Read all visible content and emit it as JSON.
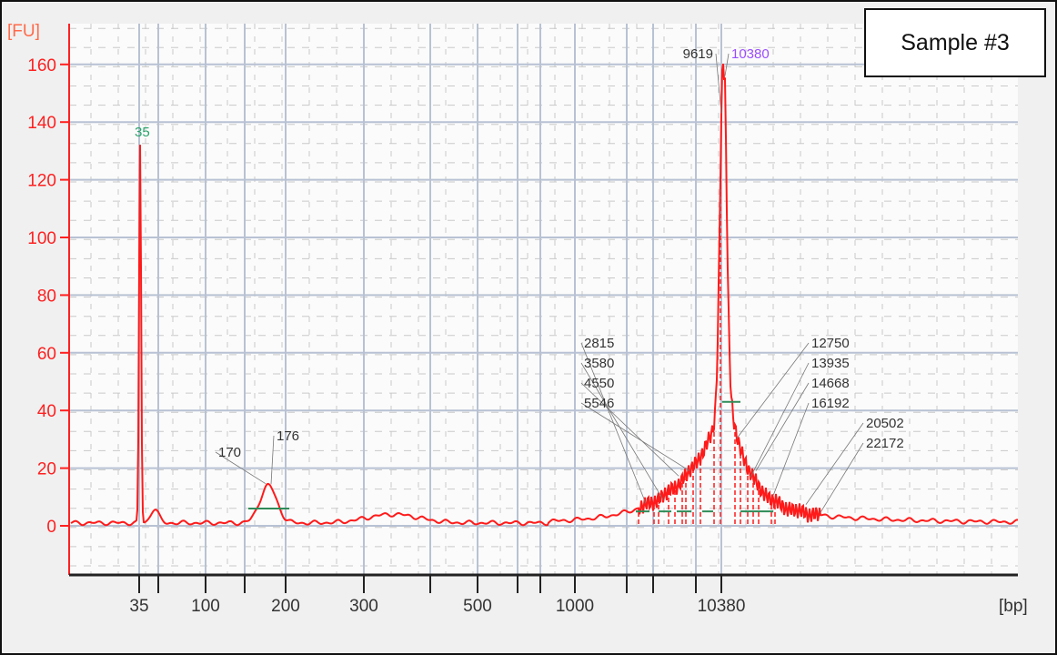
{
  "chart_data": {
    "type": "line",
    "title": "",
    "sample_label": "Sample #3",
    "ylabel": "[FU]",
    "xlabel": "[bp]",
    "ylim": [
      -17,
      174
    ],
    "yticks": [
      0,
      20,
      40,
      60,
      80,
      100,
      120,
      140,
      160
    ],
    "xticks": [
      {
        "bp": 35,
        "label": "35"
      },
      {
        "bp": 50,
        "label": ""
      },
      {
        "bp": 100,
        "label": "100"
      },
      {
        "bp": 150,
        "label": ""
      },
      {
        "bp": 200,
        "label": "200"
      },
      {
        "bp": 300,
        "label": "300"
      },
      {
        "bp": 400,
        "label": ""
      },
      {
        "bp": 500,
        "label": "500"
      },
      {
        "bp": 600,
        "label": ""
      },
      {
        "bp": 700,
        "label": ""
      },
      {
        "bp": 1000,
        "label": "1000"
      },
      {
        "bp": 1500,
        "label": ""
      },
      {
        "bp": 2000,
        "label": ""
      },
      {
        "bp": 7000,
        "label": ""
      },
      {
        "bp": 10380,
        "label": "10380"
      }
    ],
    "grid": true,
    "peaks": [
      {
        "label": "35",
        "fu": 131,
        "color": "#2aa36b"
      },
      {
        "label": "170",
        "fu": 14,
        "color": "#333333"
      },
      {
        "label": "176",
        "fu": 14,
        "color": "#333333"
      },
      {
        "label": "2815",
        "fu": 18,
        "color": "#333333"
      },
      {
        "label": "3580",
        "fu": 22,
        "color": "#333333"
      },
      {
        "label": "4550",
        "fu": 27,
        "color": "#333333"
      },
      {
        "label": "5546",
        "fu": 33,
        "color": "#333333"
      },
      {
        "label": "9619",
        "fu": 158,
        "color": "#333333"
      },
      {
        "label": "10380",
        "fu": 158,
        "color": "#9b4dff"
      },
      {
        "label": "12750",
        "fu": 43,
        "color": "#333333"
      },
      {
        "label": "13935",
        "fu": 35,
        "color": "#333333"
      },
      {
        "label": "14668",
        "fu": 20,
        "color": "#333333"
      },
      {
        "label": "16192",
        "fu": 14,
        "color": "#333333"
      },
      {
        "label": "20502",
        "fu": 7,
        "color": "#333333"
      },
      {
        "label": "22172",
        "fu": 6,
        "color": "#333333"
      }
    ],
    "colors": {
      "trace": "#ff1a1a",
      "axis": "#ff2020",
      "grid": "#b8c2d4",
      "region": "#2e8b57"
    }
  }
}
